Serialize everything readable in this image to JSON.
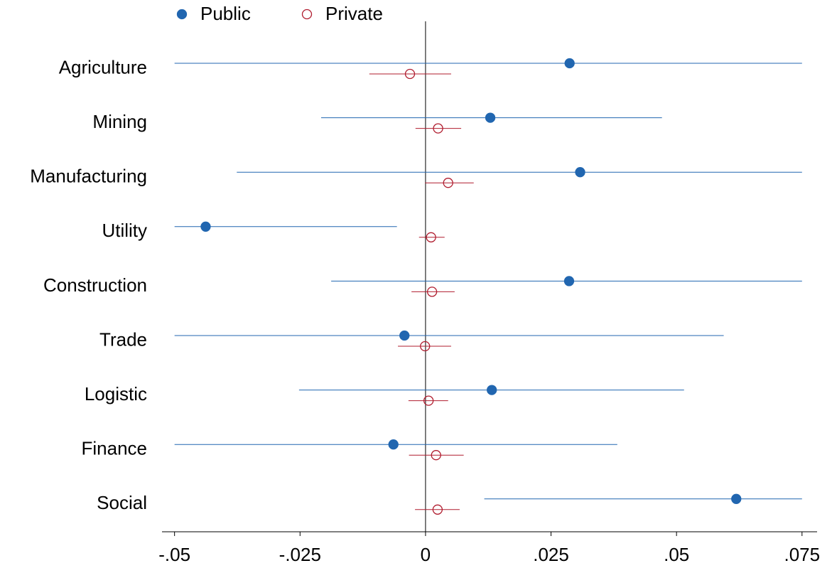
{
  "chart_data": {
    "type": "dot",
    "categories": [
      "Agriculture",
      "Mining",
      "Manufacturing",
      "Utility",
      "Construction",
      "Trade",
      "Logistic",
      "Finance",
      "Social"
    ],
    "series": [
      {
        "name": "Public",
        "color": "#2166b0",
        "marker": "filled",
        "values": [
          0.0287,
          0.0129,
          0.0308,
          -0.0438,
          0.0286,
          -0.0042,
          0.0132,
          -0.0064,
          0.0619
        ],
        "lows": [
          -0.05,
          -0.0208,
          -0.0376,
          -0.05,
          -0.0188,
          -0.05,
          -0.0252,
          -0.05,
          0.0117
        ],
        "highs": [
          0.075,
          0.0471,
          0.075,
          -0.0057,
          0.075,
          0.0594,
          0.0515,
          0.0382,
          0.075
        ]
      },
      {
        "name": "Private",
        "color": "#b01c2e",
        "marker": "open",
        "values": [
          -0.0031,
          0.0025,
          0.0045,
          0.0011,
          0.0013,
          -0.0001,
          0.0006,
          0.0021,
          0.0024
        ],
        "lows": [
          -0.0112,
          -0.002,
          -0.0001,
          -0.0013,
          -0.0028,
          -0.0055,
          -0.0034,
          -0.0033,
          -0.0021
        ],
        "highs": [
          0.0051,
          0.0071,
          0.0096,
          0.0038,
          0.0058,
          0.0051,
          0.0045,
          0.0076,
          0.0068
        ]
      }
    ],
    "xlim": [
      -0.0525,
      0.078
    ],
    "xticks": [
      {
        "value": -0.05,
        "label": "-.05"
      },
      {
        "value": -0.025,
        "label": "-.025"
      },
      0,
      {
        "value": 0.025,
        "label": ".025"
      },
      {
        "value": 0.05,
        "label": ".05"
      },
      {
        "value": 0.075,
        "label": ".075"
      }
    ],
    "zero_line": true
  }
}
